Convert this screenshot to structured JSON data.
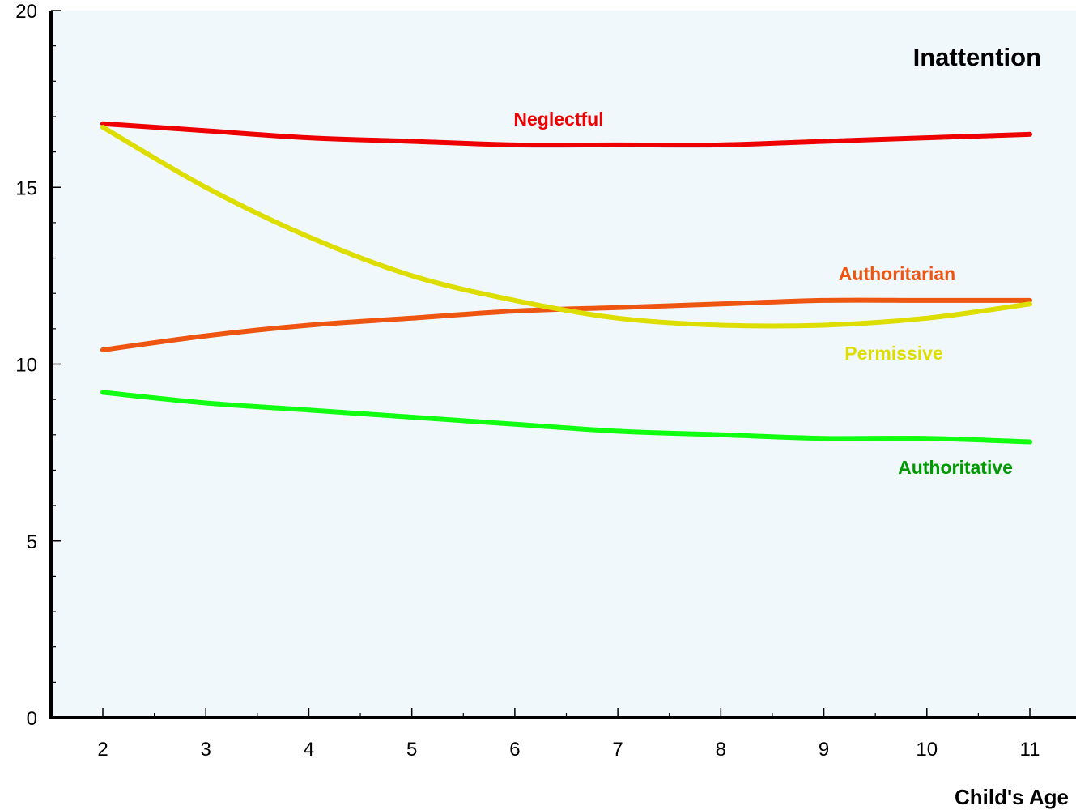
{
  "chart_data": {
    "type": "line",
    "title": "Inattention",
    "xlabel": "Child's Age",
    "ylabel": "",
    "xlim": [
      2,
      11
    ],
    "ylim": [
      0,
      20
    ],
    "x_ticks": [
      2,
      3,
      4,
      5,
      6,
      7,
      8,
      9,
      10,
      11
    ],
    "y_ticks": [
      0,
      5,
      10,
      15,
      20
    ],
    "x_minor_step": 0.5,
    "y_minor_step": 1,
    "grid": false,
    "legend": "inline labels",
    "background_color": "#f1f8fc",
    "series": [
      {
        "name": "Neglectful",
        "color": "#ee0000",
        "label_color": "#ee0000",
        "x": [
          2,
          3,
          4,
          5,
          6,
          7,
          8,
          9,
          10,
          11
        ],
        "values": [
          16.8,
          16.6,
          16.4,
          16.3,
          16.2,
          16.2,
          16.2,
          16.3,
          16.4,
          16.5
        ]
      },
      {
        "name": "Authoritarian",
        "color": "#ee5511",
        "label_color": "#ee5511",
        "x": [
          2,
          3,
          4,
          5,
          6,
          7,
          8,
          9,
          10,
          11
        ],
        "values": [
          10.4,
          10.8,
          11.1,
          11.3,
          11.5,
          11.6,
          11.7,
          11.8,
          11.8,
          11.8
        ]
      },
      {
        "name": "Permissive",
        "color": "#dddd00",
        "label_color": "#dddd00",
        "x": [
          2,
          3,
          4,
          5,
          6,
          7,
          8,
          9,
          10,
          11
        ],
        "values": [
          16.7,
          15.0,
          13.6,
          12.5,
          11.8,
          11.3,
          11.1,
          11.1,
          11.3,
          11.7
        ]
      },
      {
        "name": "Authoritative",
        "color": "#11ff11",
        "label_color": "#009900",
        "x": [
          2,
          3,
          4,
          5,
          6,
          7,
          8,
          9,
          10,
          11
        ],
        "values": [
          9.2,
          8.9,
          8.7,
          8.5,
          8.3,
          8.1,
          8.0,
          7.9,
          7.9,
          7.8
        ]
      }
    ]
  }
}
